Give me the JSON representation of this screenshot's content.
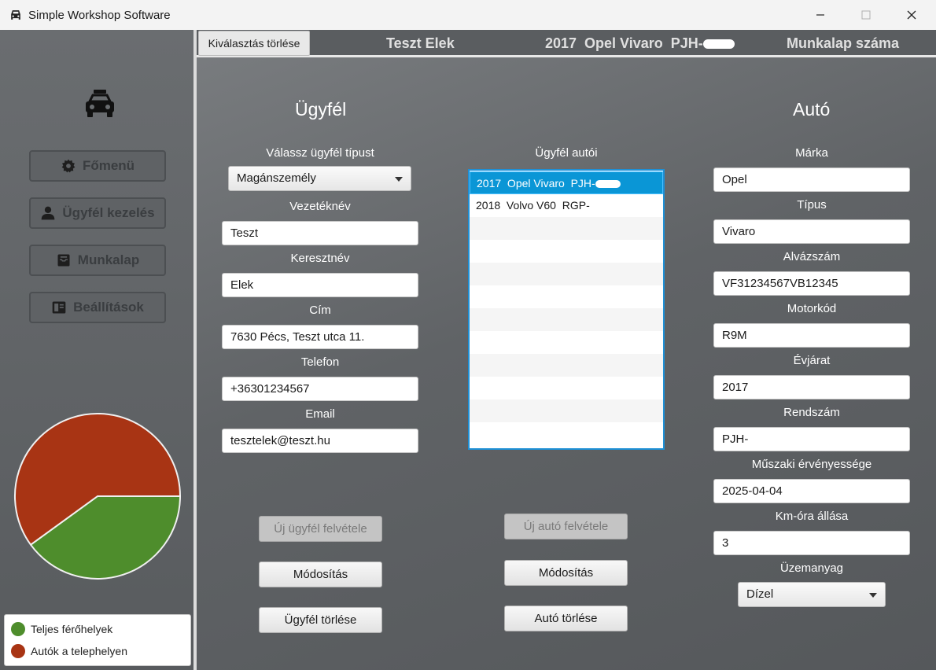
{
  "window": {
    "title": "Simple Workshop Software"
  },
  "sidebar": {
    "items": [
      {
        "label": "Főmenü",
        "icon": "gear-icon"
      },
      {
        "label": "Ügyfél kezelés",
        "icon": "person-icon"
      },
      {
        "label": "Munkalap",
        "icon": "inbox-icon"
      },
      {
        "label": "Beállítások",
        "icon": "book-icon"
      }
    ],
    "legend": [
      {
        "label": "Teljes férőhelyek",
        "color": "#4e8d2c"
      },
      {
        "label": "Autók a telephelyen",
        "color": "#a83414"
      }
    ]
  },
  "chart_data": {
    "type": "pie",
    "categories": [
      "Teljes férőhelyek",
      "Autók a telephelyen"
    ],
    "values": [
      40,
      60
    ],
    "colors": [
      "#4e8d2c",
      "#a83414"
    ],
    "legend": "bottom"
  },
  "header": {
    "clear_label": "Kiválasztás törlése",
    "customer_name": "Teszt Elek",
    "car_summary": "2017  Opel Vivaro  PJH-",
    "worksheet_label": "Munkalap száma"
  },
  "customer": {
    "title": "Ügyfél",
    "type_label": "Válassz ügyfél típust",
    "type_value": "Magánszemély",
    "lastname_label": "Vezetéknév",
    "lastname": "Teszt",
    "firstname_label": "Keresztnév",
    "firstname": "Elek",
    "address_label": "Cím",
    "address": "7630 Pécs, Teszt utca 11.",
    "phone_label": "Telefon",
    "phone": "+36301234567",
    "email_label": "Email",
    "email": "tesztelek@teszt.hu",
    "new_label": "Új ügyfél felvétele",
    "edit_label": "Módosítás",
    "delete_label": "Ügyfél törlése"
  },
  "cars_list": {
    "title": "Ügyfél autói",
    "items": [
      "2017  Opel Vivaro  PJH-",
      "2018  Volvo V60  RGP-"
    ],
    "new_label": "Új autó felvétele",
    "edit_label": "Módosítás",
    "delete_label": "Autó törlése"
  },
  "car": {
    "title": "Autó",
    "brand_label": "Márka",
    "brand": "Opel",
    "type_label": "Típus",
    "type": "Vivaro",
    "vin_label": "Alvázszám",
    "vin": "VF31234567VB12345",
    "engine_label": "Motorkód",
    "engine": "R9M",
    "year_label": "Évjárat",
    "year": "2017",
    "plate_label": "Rendszám",
    "plate": "PJH-",
    "inspection_label": "Műszaki érvényessége",
    "inspection": "2025-04-04",
    "km_label": "Km-óra állása",
    "km": "3",
    "fuel_label": "Üzemanyag",
    "fuel": "Dízel"
  }
}
